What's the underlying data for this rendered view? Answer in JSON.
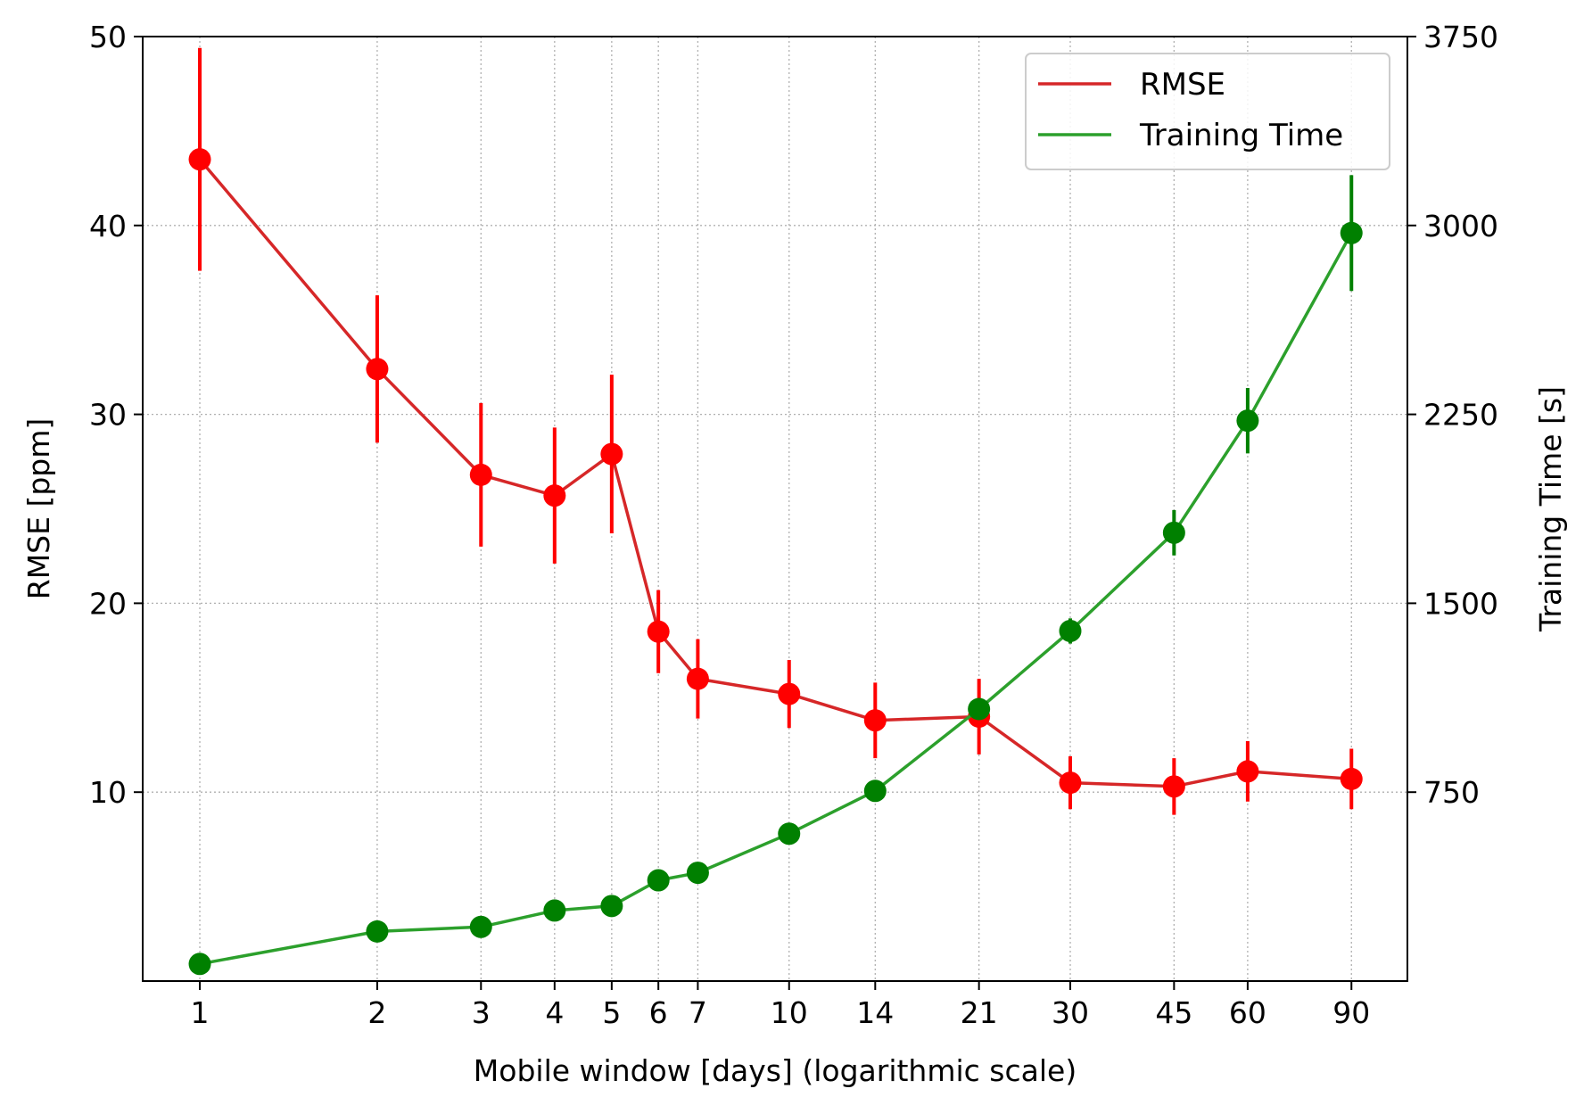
{
  "chart_data": {
    "type": "line",
    "title": "",
    "xlabel": "Mobile window [days] (logarithmic scale)",
    "ylabel": "RMSE [ppm]",
    "ylabel_right": "Training Time [s]",
    "x_scale": "log",
    "x": [
      1,
      2,
      3,
      4,
      5,
      6,
      7,
      10,
      14,
      21,
      30,
      45,
      60,
      90
    ],
    "x_tick_labels": [
      "1",
      "2",
      "3",
      "4",
      "5",
      "6",
      "7",
      "10",
      "14",
      "21",
      "30",
      "45",
      "60",
      "90"
    ],
    "xlim": [
      0.8,
      112
    ],
    "ylim": [
      0,
      50
    ],
    "ylim_right": [
      0,
      3750
    ],
    "y_ticks": [
      10,
      20,
      30,
      40,
      50
    ],
    "y_ticks_right": [
      750,
      1500,
      2250,
      3000,
      3750
    ],
    "grid": true,
    "legend_position": "top-right",
    "series": [
      {
        "name": "RMSE",
        "axis": "left",
        "line_color": "#d62728",
        "marker_color": "#ff0000",
        "values": [
          43.5,
          32.4,
          26.8,
          25.7,
          27.9,
          18.5,
          16.0,
          15.2,
          13.8,
          14.0,
          10.5,
          10.3,
          11.1,
          10.7
        ],
        "errors": [
          5.9,
          3.9,
          3.8,
          3.6,
          4.2,
          2.2,
          2.1,
          1.8,
          2.0,
          2.0,
          1.4,
          1.5,
          1.6,
          1.6
        ]
      },
      {
        "name": "Training Time",
        "axis": "right",
        "line_color": "#2ca02c",
        "marker_color": "#008000",
        "values": [
          68,
          197,
          215,
          280,
          298,
          400,
          430,
          585,
          755,
          1080,
          1390,
          1780,
          2225,
          2970
        ],
        "errors": [
          10,
          10,
          10,
          10,
          10,
          10,
          15,
          20,
          20,
          30,
          50,
          90,
          130,
          230
        ]
      }
    ]
  }
}
